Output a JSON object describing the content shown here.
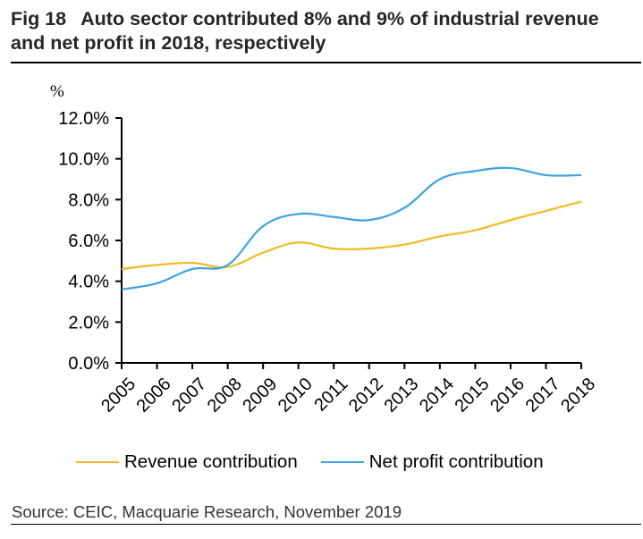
{
  "header": {
    "fig_label": "Fig 18",
    "title": "Auto sector contributed 8% and 9% of industrial revenue and net profit in 2018, respectively"
  },
  "source": "Source: CEIC, Macquarie Research, November 2019",
  "colors": {
    "revenue": "#F5B820",
    "net_profit": "#3BA3E3",
    "axis": "#000000"
  },
  "chart_data": {
    "type": "line",
    "title": "Auto sector contributed 8% and 9% of industrial revenue and net profit in 2018, respectively",
    "xlabel": "",
    "ylabel": "%",
    "x": [
      "2005",
      "2006",
      "2007",
      "2008",
      "2009",
      "2010",
      "2011",
      "2012",
      "2013",
      "2014",
      "2015",
      "2016",
      "2017",
      "2018"
    ],
    "ylim": [
      0,
      12
    ],
    "yticks": [
      0,
      2,
      4,
      6,
      8,
      10,
      12
    ],
    "ytick_labels": [
      "0.0%",
      "2.0%",
      "4.0%",
      "6.0%",
      "8.0%",
      "10.0%",
      "12.0%"
    ],
    "grid": false,
    "legend_position": "bottom",
    "smooth": true,
    "series": [
      {
        "name": "Revenue contribution",
        "color": "#F5B820",
        "values": [
          4.6,
          4.8,
          4.9,
          4.7,
          5.4,
          5.9,
          5.6,
          5.6,
          5.8,
          6.2,
          6.5,
          7.0,
          7.45,
          7.9
        ]
      },
      {
        "name": "Net profit contribution",
        "color": "#3BA3E3",
        "values": [
          3.6,
          3.9,
          4.6,
          4.8,
          6.7,
          7.3,
          7.15,
          7.0,
          7.6,
          9.0,
          9.4,
          9.55,
          9.2,
          9.2
        ]
      }
    ]
  }
}
